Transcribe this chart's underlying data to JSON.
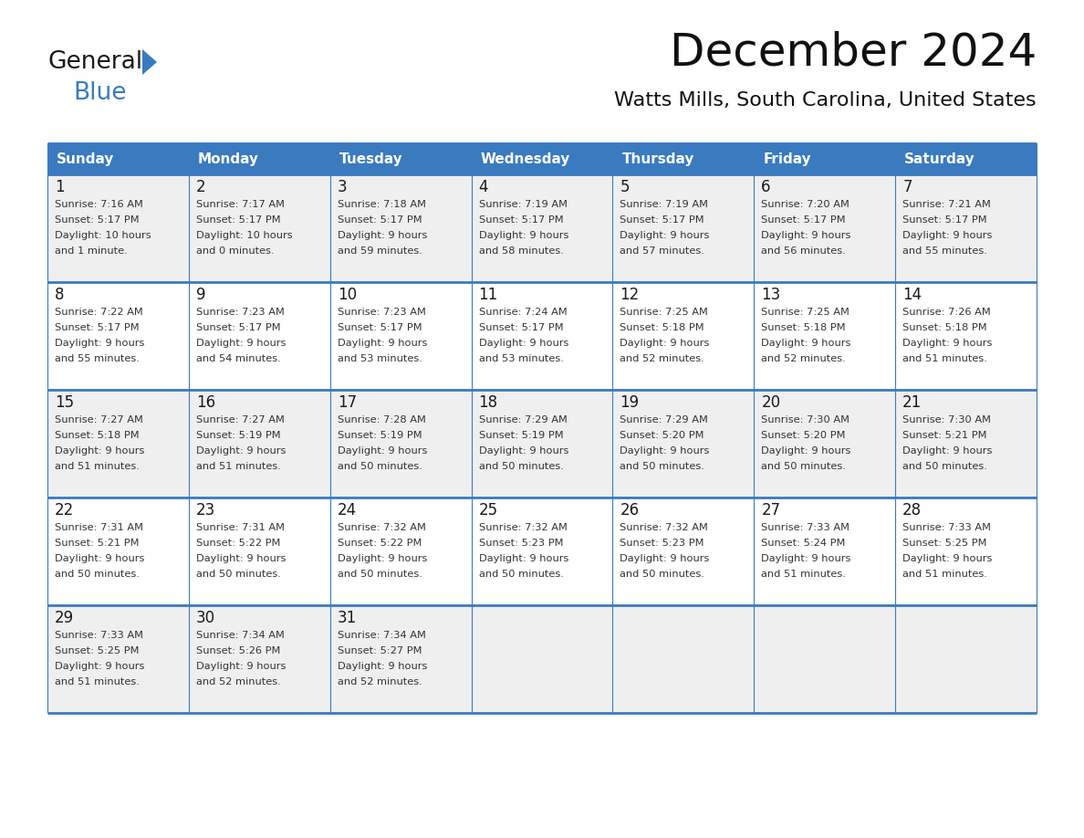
{
  "title": "December 2024",
  "subtitle": "Watts Mills, South Carolina, United States",
  "header_bg": "#3a7abf",
  "header_text": "#ffffff",
  "row_bg_odd": "#efefef",
  "row_bg_even": "#ffffff",
  "border_color": "#3a7abf",
  "day_headers": [
    "Sunday",
    "Monday",
    "Tuesday",
    "Wednesday",
    "Thursday",
    "Friday",
    "Saturday"
  ],
  "weeks": [
    [
      {
        "day": 1,
        "sunrise": "7:16 AM",
        "sunset": "5:17 PM",
        "daylight": "10 hours\nand 1 minute."
      },
      {
        "day": 2,
        "sunrise": "7:17 AM",
        "sunset": "5:17 PM",
        "daylight": "10 hours\nand 0 minutes."
      },
      {
        "day": 3,
        "sunrise": "7:18 AM",
        "sunset": "5:17 PM",
        "daylight": "9 hours\nand 59 minutes."
      },
      {
        "day": 4,
        "sunrise": "7:19 AM",
        "sunset": "5:17 PM",
        "daylight": "9 hours\nand 58 minutes."
      },
      {
        "day": 5,
        "sunrise": "7:19 AM",
        "sunset": "5:17 PM",
        "daylight": "9 hours\nand 57 minutes."
      },
      {
        "day": 6,
        "sunrise": "7:20 AM",
        "sunset": "5:17 PM",
        "daylight": "9 hours\nand 56 minutes."
      },
      {
        "day": 7,
        "sunrise": "7:21 AM",
        "sunset": "5:17 PM",
        "daylight": "9 hours\nand 55 minutes."
      }
    ],
    [
      {
        "day": 8,
        "sunrise": "7:22 AM",
        "sunset": "5:17 PM",
        "daylight": "9 hours\nand 55 minutes."
      },
      {
        "day": 9,
        "sunrise": "7:23 AM",
        "sunset": "5:17 PM",
        "daylight": "9 hours\nand 54 minutes."
      },
      {
        "day": 10,
        "sunrise": "7:23 AM",
        "sunset": "5:17 PM",
        "daylight": "9 hours\nand 53 minutes."
      },
      {
        "day": 11,
        "sunrise": "7:24 AM",
        "sunset": "5:17 PM",
        "daylight": "9 hours\nand 53 minutes."
      },
      {
        "day": 12,
        "sunrise": "7:25 AM",
        "sunset": "5:18 PM",
        "daylight": "9 hours\nand 52 minutes."
      },
      {
        "day": 13,
        "sunrise": "7:25 AM",
        "sunset": "5:18 PM",
        "daylight": "9 hours\nand 52 minutes."
      },
      {
        "day": 14,
        "sunrise": "7:26 AM",
        "sunset": "5:18 PM",
        "daylight": "9 hours\nand 51 minutes."
      }
    ],
    [
      {
        "day": 15,
        "sunrise": "7:27 AM",
        "sunset": "5:18 PM",
        "daylight": "9 hours\nand 51 minutes."
      },
      {
        "day": 16,
        "sunrise": "7:27 AM",
        "sunset": "5:19 PM",
        "daylight": "9 hours\nand 51 minutes."
      },
      {
        "day": 17,
        "sunrise": "7:28 AM",
        "sunset": "5:19 PM",
        "daylight": "9 hours\nand 50 minutes."
      },
      {
        "day": 18,
        "sunrise": "7:29 AM",
        "sunset": "5:19 PM",
        "daylight": "9 hours\nand 50 minutes."
      },
      {
        "day": 19,
        "sunrise": "7:29 AM",
        "sunset": "5:20 PM",
        "daylight": "9 hours\nand 50 minutes."
      },
      {
        "day": 20,
        "sunrise": "7:30 AM",
        "sunset": "5:20 PM",
        "daylight": "9 hours\nand 50 minutes."
      },
      {
        "day": 21,
        "sunrise": "7:30 AM",
        "sunset": "5:21 PM",
        "daylight": "9 hours\nand 50 minutes."
      }
    ],
    [
      {
        "day": 22,
        "sunrise": "7:31 AM",
        "sunset": "5:21 PM",
        "daylight": "9 hours\nand 50 minutes."
      },
      {
        "day": 23,
        "sunrise": "7:31 AM",
        "sunset": "5:22 PM",
        "daylight": "9 hours\nand 50 minutes."
      },
      {
        "day": 24,
        "sunrise": "7:32 AM",
        "sunset": "5:22 PM",
        "daylight": "9 hours\nand 50 minutes."
      },
      {
        "day": 25,
        "sunrise": "7:32 AM",
        "sunset": "5:23 PM",
        "daylight": "9 hours\nand 50 minutes."
      },
      {
        "day": 26,
        "sunrise": "7:32 AM",
        "sunset": "5:23 PM",
        "daylight": "9 hours\nand 50 minutes."
      },
      {
        "day": 27,
        "sunrise": "7:33 AM",
        "sunset": "5:24 PM",
        "daylight": "9 hours\nand 51 minutes."
      },
      {
        "day": 28,
        "sunrise": "7:33 AM",
        "sunset": "5:25 PM",
        "daylight": "9 hours\nand 51 minutes."
      }
    ],
    [
      {
        "day": 29,
        "sunrise": "7:33 AM",
        "sunset": "5:25 PM",
        "daylight": "9 hours\nand 51 minutes."
      },
      {
        "day": 30,
        "sunrise": "7:34 AM",
        "sunset": "5:26 PM",
        "daylight": "9 hours\nand 52 minutes."
      },
      {
        "day": 31,
        "sunrise": "7:34 AM",
        "sunset": "5:27 PM",
        "daylight": "9 hours\nand 52 minutes."
      },
      null,
      null,
      null,
      null
    ]
  ],
  "logo_general_color": "#1a1a1a",
  "logo_blue_color": "#3a7abf",
  "logo_triangle_color": "#3a7abf",
  "fig_width": 11.88,
  "fig_height": 9.18,
  "dpi": 100
}
